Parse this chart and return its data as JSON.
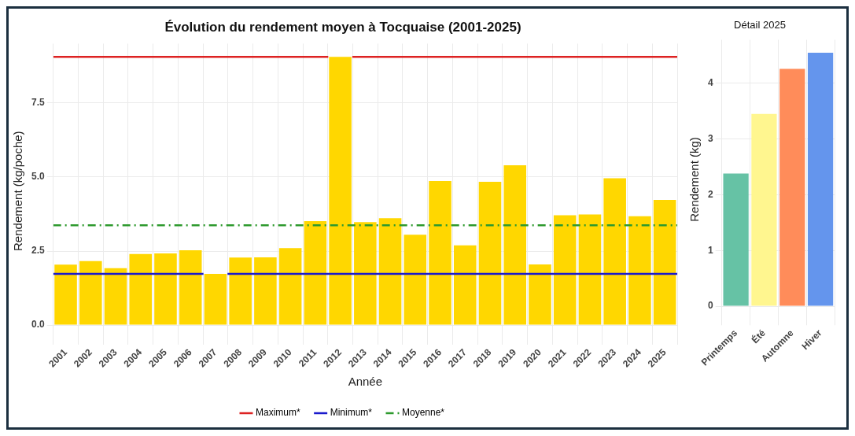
{
  "chart_data": [
    {
      "type": "bar",
      "title": "Évolution du rendement moyen à Tocquaise (2001-2025)",
      "xlabel": "Année",
      "ylabel": "Rendement (kg/poche)",
      "categories": [
        "2001",
        "2002",
        "2003",
        "2004",
        "2005",
        "2006",
        "2007",
        "2008",
        "2009",
        "2010",
        "2011",
        "2012",
        "2013",
        "2014",
        "2015",
        "2016",
        "2017",
        "2018",
        "2019",
        "2020",
        "2021",
        "2022",
        "2023",
        "2024",
        "2025"
      ],
      "values": [
        2.04,
        2.16,
        1.92,
        2.4,
        2.42,
        2.53,
        1.73,
        2.28,
        2.29,
        2.6,
        3.51,
        9.06,
        3.48,
        3.61,
        3.05,
        4.87,
        2.69,
        4.84,
        5.4,
        2.05,
        3.71,
        3.74,
        4.96,
        3.68,
        4.23
      ],
      "color": "#ffd700",
      "ylim": [
        -0.45,
        9.51
      ],
      "yticks": [
        {
          "value": 0,
          "label": "0.0"
        },
        2.5,
        {
          "value": 5,
          "label": "5.0"
        },
        7.5
      ],
      "ref_lines": [
        {
          "axis": "y",
          "value": 9.06,
          "label": "Maximum*",
          "color": "#dd2222",
          "line_style": "solid"
        },
        {
          "axis": "y",
          "value": 1.73,
          "label": "Minimum*",
          "color": "#1a1acc",
          "line_style": "solid"
        },
        {
          "axis": "y",
          "value": 3.37,
          "label": "Moyenne*",
          "color": "#2e9a2e",
          "line_style": "dashdot"
        }
      ],
      "grid": true,
      "legend": "bottom"
    },
    {
      "type": "bar",
      "title": "Détail 2025",
      "ylabel": "Rendement (kg)",
      "categories": [
        "Printemps",
        "Été",
        "Automne",
        "Hiver"
      ],
      "values": [
        2.38,
        3.45,
        4.26,
        4.55
      ],
      "colors": [
        "#66c2a5",
        "#fff68f",
        "#ff8c5a",
        "#6495ed"
      ],
      "ylim": [
        -0.23,
        4.78
      ],
      "yticks": [
        0,
        1,
        2,
        3,
        4
      ],
      "grid": true,
      "legend": false
    }
  ]
}
